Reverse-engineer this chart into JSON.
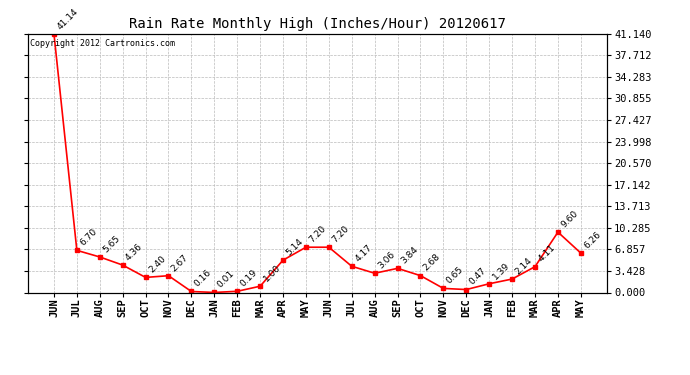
{
  "title": "Rain Rate Monthly High (Inches/Hour) 20120617",
  "copyright": "Copyright 2012 Cartronics.com",
  "categories": [
    "JUN",
    "JUL",
    "AUG",
    "SEP",
    "OCT",
    "NOV",
    "DEC",
    "JAN",
    "FEB",
    "MAR",
    "APR",
    "MAY",
    "JUN",
    "JUL",
    "AUG",
    "SEP",
    "OCT",
    "NOV",
    "DEC",
    "JAN",
    "FEB",
    "MAR",
    "APR",
    "MAY"
  ],
  "values": [
    41.14,
    6.7,
    5.65,
    4.36,
    2.4,
    2.67,
    0.16,
    0.01,
    0.19,
    1.0,
    5.14,
    7.2,
    7.2,
    4.17,
    3.06,
    3.84,
    2.68,
    0.65,
    0.47,
    1.39,
    2.14,
    4.11,
    9.6,
    6.26
  ],
  "ylim": [
    0.0,
    41.14
  ],
  "yticks": [
    0.0,
    3.428,
    6.857,
    10.285,
    13.713,
    17.142,
    20.57,
    23.998,
    27.427,
    30.855,
    34.283,
    37.712,
    41.14
  ],
  "line_color": "#ff0000",
  "marker_color": "#ff0000",
  "bg_color": "#ffffff",
  "grid_color": "#bbbbbb",
  "title_fontsize": 10,
  "tick_fontsize": 7.5,
  "annotation_fontsize": 6.5,
  "copyright_fontsize": 6
}
